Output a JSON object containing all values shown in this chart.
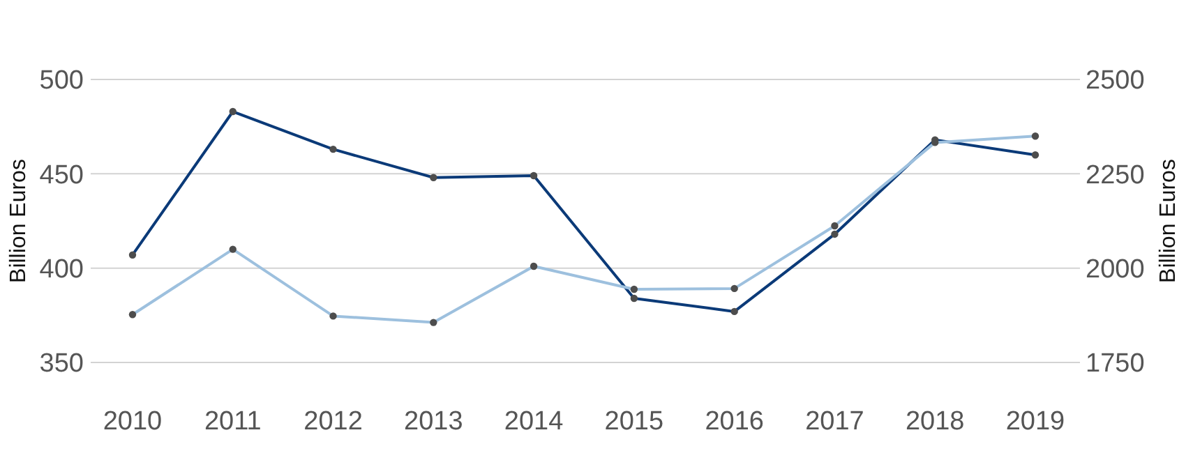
{
  "chart_data": {
    "type": "line",
    "categories": [
      "2010",
      "2011",
      "2012",
      "2013",
      "2014",
      "2015",
      "2016",
      "2017",
      "2018",
      "2019"
    ],
    "series": [
      {
        "color": "#0b3a78",
        "values": [
          407,
          483,
          463,
          448,
          449,
          384,
          377,
          418,
          468,
          460
        ]
      },
      {
        "color": "#9dc0de",
        "axis": "y2",
        "values": [
          1877,
          2050,
          1873,
          1856,
          2005,
          1944,
          1946,
          2112,
          2333,
          2350
        ]
      }
    ],
    "ylabel": "Billion Euros",
    "y2label": "Billion Euros",
    "ylim": [
      350,
      500
    ],
    "yticks": [
      350,
      400,
      450,
      500
    ],
    "y2lim": [
      1750,
      2500
    ],
    "y2ticks": [
      1750,
      2000,
      2250,
      2500
    ],
    "grid": "y",
    "marker": "circle",
    "line_style": "solid"
  }
}
